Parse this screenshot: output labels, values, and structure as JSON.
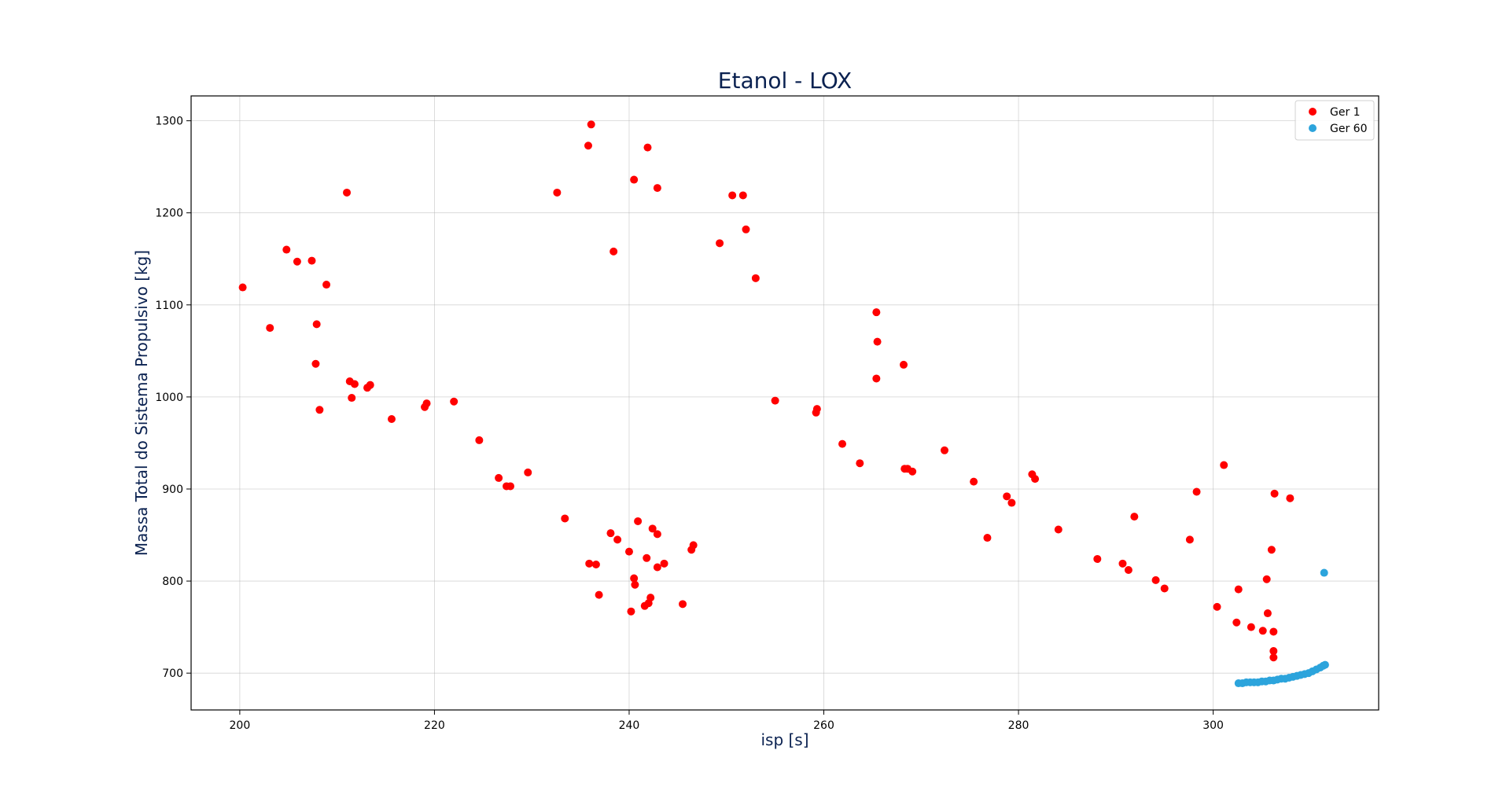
{
  "chart_data": {
    "type": "scatter",
    "title": "Etanol - LOX",
    "xlabel": "isp [s]",
    "ylabel": "Massa Total do Sistema Propulsivo [kg]",
    "xlim": [
      195,
      317
    ],
    "ylim": [
      660,
      1327
    ],
    "xticks": [
      200,
      220,
      240,
      260,
      280,
      300
    ],
    "yticks": [
      700,
      800,
      900,
      1000,
      1100,
      1200,
      1300
    ],
    "grid": true,
    "legend_position": "top-right",
    "series": [
      {
        "name": "Ger 1",
        "color": "#ff0000",
        "points": [
          [
            200.3,
            1119
          ],
          [
            203.1,
            1075
          ],
          [
            204.8,
            1160
          ],
          [
            205.9,
            1147
          ],
          [
            207.4,
            1148
          ],
          [
            207.9,
            1079
          ],
          [
            207.8,
            1036
          ],
          [
            208.2,
            986
          ],
          [
            208.9,
            1122
          ],
          [
            211.0,
            1222
          ],
          [
            211.3,
            1017
          ],
          [
            211.5,
            999
          ],
          [
            211.8,
            1014
          ],
          [
            213.1,
            1010
          ],
          [
            213.4,
            1013
          ],
          [
            215.6,
            976
          ],
          [
            219.0,
            989
          ],
          [
            219.2,
            993
          ],
          [
            222.0,
            995
          ],
          [
            224.6,
            953
          ],
          [
            226.6,
            912
          ],
          [
            227.4,
            903
          ],
          [
            227.8,
            903
          ],
          [
            229.6,
            918
          ],
          [
            232.6,
            1222
          ],
          [
            233.4,
            868
          ],
          [
            235.8,
            1273
          ],
          [
            236.1,
            1296
          ],
          [
            235.9,
            819
          ],
          [
            236.6,
            818
          ],
          [
            236.9,
            785
          ],
          [
            238.1,
            852
          ],
          [
            238.4,
            1158
          ],
          [
            238.8,
            845
          ],
          [
            240.0,
            832
          ],
          [
            240.2,
            767
          ],
          [
            240.5,
            803
          ],
          [
            240.6,
            796
          ],
          [
            240.5,
            1236
          ],
          [
            240.9,
            865
          ],
          [
            241.9,
            1271
          ],
          [
            241.8,
            825
          ],
          [
            241.6,
            773
          ],
          [
            242.0,
            776
          ],
          [
            242.2,
            782
          ],
          [
            242.4,
            857
          ],
          [
            242.9,
            1227
          ],
          [
            242.9,
            851
          ],
          [
            242.9,
            815
          ],
          [
            243.6,
            819
          ],
          [
            245.5,
            775
          ],
          [
            246.4,
            834
          ],
          [
            246.6,
            839
          ],
          [
            249.3,
            1167
          ],
          [
            250.6,
            1219
          ],
          [
            251.7,
            1219
          ],
          [
            252.0,
            1182
          ],
          [
            253.0,
            1129
          ],
          [
            255.0,
            996
          ],
          [
            259.2,
            983
          ],
          [
            259.3,
            987
          ],
          [
            261.9,
            949
          ],
          [
            263.7,
            928
          ],
          [
            265.4,
            1092
          ],
          [
            265.5,
            1060
          ],
          [
            265.4,
            1020
          ],
          [
            268.2,
            1035
          ],
          [
            268.3,
            922
          ],
          [
            268.6,
            922
          ],
          [
            269.1,
            919
          ],
          [
            272.4,
            942
          ],
          [
            275.4,
            908
          ],
          [
            276.8,
            847
          ],
          [
            278.8,
            892
          ],
          [
            279.3,
            885
          ],
          [
            281.4,
            916
          ],
          [
            281.7,
            911
          ],
          [
            284.1,
            856
          ],
          [
            288.1,
            824
          ],
          [
            290.7,
            819
          ],
          [
            291.3,
            812
          ],
          [
            291.9,
            870
          ],
          [
            294.1,
            801
          ],
          [
            295.0,
            792
          ],
          [
            297.6,
            845
          ],
          [
            298.3,
            897
          ],
          [
            300.4,
            772
          ],
          [
            301.1,
            926
          ],
          [
            302.4,
            755
          ],
          [
            302.6,
            791
          ],
          [
            303.9,
            750
          ],
          [
            305.1,
            746
          ],
          [
            305.5,
            802
          ],
          [
            305.6,
            765
          ],
          [
            306.0,
            834
          ],
          [
            306.2,
            745
          ],
          [
            306.2,
            724
          ],
          [
            306.2,
            717
          ],
          [
            306.3,
            895
          ],
          [
            307.9,
            890
          ]
        ]
      },
      {
        "name": "Ger 60",
        "color": "#2ca4dc",
        "points": [
          [
            302.6,
            689
          ],
          [
            303.0,
            689
          ],
          [
            303.4,
            690
          ],
          [
            303.8,
            690
          ],
          [
            304.2,
            690
          ],
          [
            304.6,
            690
          ],
          [
            305.0,
            691
          ],
          [
            305.4,
            691
          ],
          [
            305.8,
            692
          ],
          [
            306.2,
            692
          ],
          [
            306.6,
            693
          ],
          [
            307.0,
            694
          ],
          [
            307.4,
            694
          ],
          [
            307.8,
            695
          ],
          [
            308.2,
            696
          ],
          [
            308.6,
            697
          ],
          [
            309.0,
            698
          ],
          [
            309.4,
            699
          ],
          [
            309.8,
            700
          ],
          [
            310.2,
            702
          ],
          [
            310.6,
            704
          ],
          [
            311.0,
            706
          ],
          [
            311.3,
            708
          ],
          [
            311.5,
            709
          ],
          [
            311.4,
            809
          ]
        ]
      }
    ]
  }
}
